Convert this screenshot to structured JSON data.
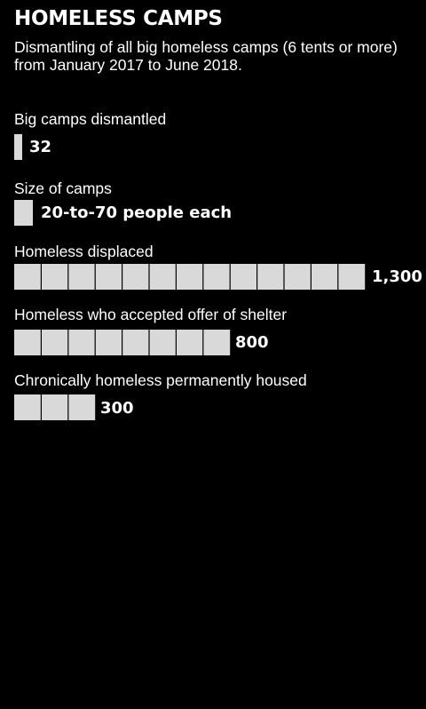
{
  "header": {
    "title": "HOMELESS CAMPS",
    "subtitle": "Dismantling of all big homeless camps (6 tents or more) from January 2017 to June 2018."
  },
  "colors": {
    "background": "#000000",
    "bar_fill": "#d9d9d9",
    "text": "#ffffff"
  },
  "chart_data": {
    "type": "bar",
    "categories": [
      "Big camps dismantled",
      "Size of camps",
      "Homeless displaced",
      "Homeless who accepted offer of shelter",
      "Chronically homeless permanently housed"
    ],
    "value_labels": [
      "32",
      "20-to-70 people each",
      "1,300",
      "800",
      "300"
    ],
    "values": [
      32,
      null,
      1300,
      800,
      300
    ],
    "unit_per_segment": 100,
    "orientation": "horizontal"
  }
}
